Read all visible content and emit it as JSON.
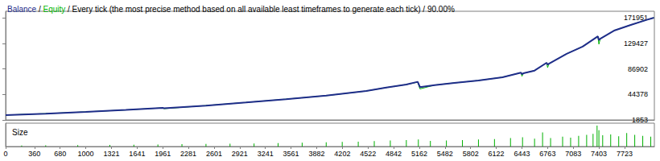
{
  "chart_data": [
    {
      "type": "line",
      "title": "Balance / Equity / Every tick (the most precise method based on all available least timeframes to generate each tick) / 90.00%",
      "x": [
        0,
        500,
        1000,
        1500,
        1961,
        1975,
        2500,
        3000,
        3500,
        4000,
        4500,
        4750,
        5000,
        5142,
        5170,
        5353,
        5600,
        5900,
        6200,
        6430,
        6443,
        6460,
        6600,
        6750,
        6763,
        6780,
        7000,
        7200,
        7390,
        7403,
        7420,
        7600,
        7800,
        8000,
        8090
      ],
      "series": [
        {
          "name": "Balance",
          "color": "#1f2d8a",
          "values": [
            10000,
            12400,
            15300,
            18500,
            22000,
            21400,
            25800,
            31000,
            36500,
            42300,
            50000,
            55800,
            60800,
            65300,
            56500,
            59900,
            63500,
            67500,
            73000,
            80500,
            78000,
            79500,
            84000,
            97000,
            94000,
            95500,
            112000,
            124000,
            141000,
            135000,
            137000,
            151000,
            160000,
            168500,
            171951
          ]
        },
        {
          "name": "Equity",
          "color": "#00b400",
          "values": [
            10000,
            12400,
            15300,
            18500,
            22000,
            20600,
            25800,
            31000,
            36500,
            42300,
            50000,
            55800,
            60800,
            64800,
            53500,
            59900,
            63500,
            67500,
            73000,
            80500,
            74500,
            79500,
            84000,
            97000,
            89000,
            95500,
            112000,
            124000,
            141000,
            128000,
            137000,
            151000,
            160000,
            168500,
            171951
          ]
        }
      ],
      "xlim": [
        0,
        8095
      ],
      "ylim": [
        1853,
        182750
      ],
      "yticks": [
        1853,
        44378,
        86902,
        129427,
        171951
      ],
      "grid": false,
      "tick_labels": "y"
    },
    {
      "type": "bar",
      "title": "Size",
      "x": [
        200,
        500,
        900,
        1300,
        1600,
        1900,
        2200,
        2500,
        2800,
        3100,
        3400,
        3700,
        4000,
        4200,
        4400,
        4600,
        4800,
        5000,
        5150,
        5300,
        5500,
        5700,
        5900,
        6100,
        6300,
        6450,
        6600,
        6700,
        6800,
        6950,
        7050,
        7150,
        7250,
        7330,
        7380,
        7403,
        7450,
        7550,
        7650,
        7750,
        7850,
        7950,
        8050
      ],
      "values": [
        0.4,
        0.5,
        0.6,
        0.7,
        0.8,
        0.9,
        1.0,
        1.1,
        1.2,
        1.3,
        1.5,
        1.6,
        1.8,
        2.0,
        2.1,
        2.3,
        2.6,
        2.8,
        3.0,
        2.4,
        2.6,
        2.8,
        3.0,
        3.2,
        3.6,
        4.0,
        3.4,
        6.0,
        3.6,
        4.2,
        3.8,
        4.6,
        5.0,
        5.4,
        9.0,
        7.0,
        4.8,
        5.2,
        4.4,
        5.8,
        5.0,
        4.6,
        4.2
      ],
      "color": "#00b000",
      "xlim": [
        0,
        8095
      ],
      "xticks": [
        0,
        360,
        680,
        1000,
        1321,
        1641,
        1961,
        2281,
        2601,
        2921,
        3241,
        3561,
        3882,
        4202,
        4522,
        4842,
        5162,
        5482,
        5802,
        6122,
        6443,
        6763,
        7083,
        7403,
        7723
      ],
      "ylim": [
        0,
        10
      ],
      "grid": false,
      "tick_labels": "x"
    }
  ]
}
